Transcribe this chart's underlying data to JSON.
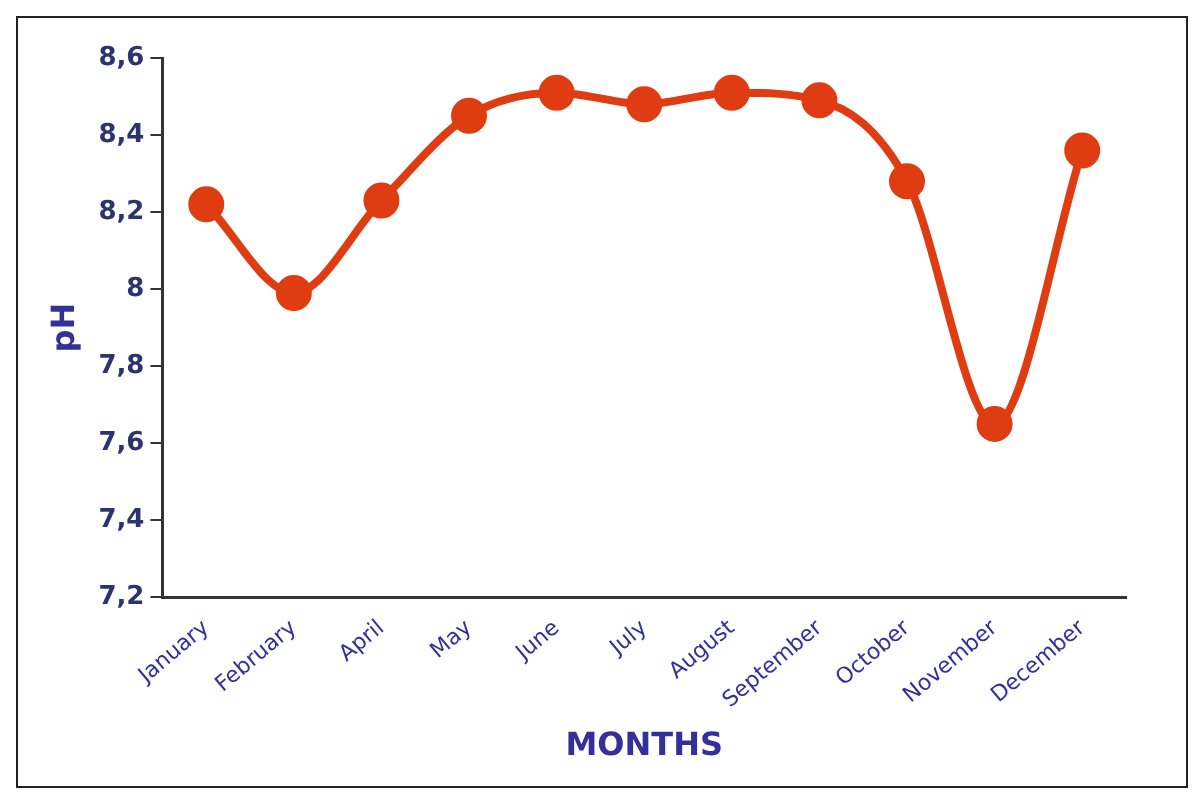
{
  "chart_data": {
    "type": "line",
    "xlabel": "MONTHS",
    "ylabel": "pH",
    "categories": [
      "January",
      "February",
      "April",
      "May",
      "June",
      "July",
      "August",
      "September",
      "October",
      "November",
      "December"
    ],
    "series": [
      {
        "color": "#e03c12",
        "values": [
          8.22,
          7.99,
          8.23,
          8.45,
          8.51,
          8.48,
          8.51,
          8.49,
          8.28,
          7.65,
          8.36
        ]
      }
    ],
    "ylim": [
      7.2,
      8.6
    ],
    "yticks": [
      {
        "value": 7.2,
        "label": "7,2"
      },
      {
        "value": 7.4,
        "label": "7,4"
      },
      {
        "value": 7.6,
        "label": "7,6"
      },
      {
        "value": 7.8,
        "label": "7,8"
      },
      8,
      {
        "value": 8.2,
        "label": "8,2"
      },
      {
        "value": 8.4,
        "label": "8,4"
      },
      {
        "value": 8.6,
        "label": "8,6"
      }
    ],
    "grid": false,
    "legend": false,
    "marker": "circle",
    "line_style": "solid"
  }
}
